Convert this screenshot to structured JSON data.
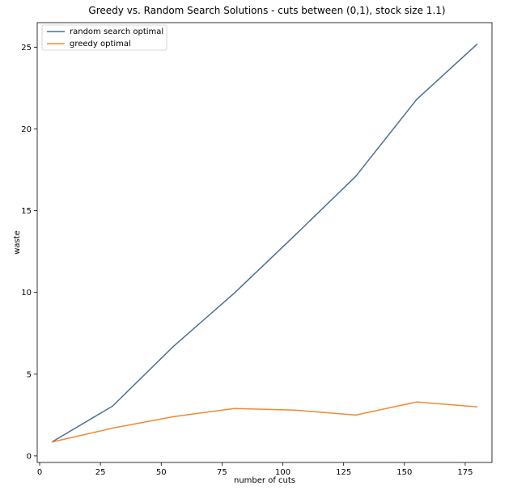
{
  "chart_data": {
    "type": "line",
    "title": "Greedy vs. Random Search Solutions - cuts between (0,1), stock size 1.1)",
    "xlabel": "number of cuts",
    "ylabel": "waste",
    "xlim": [
      -1,
      186
    ],
    "ylim": [
      -0.4,
      26.5
    ],
    "xticks": [
      0,
      25,
      50,
      75,
      100,
      125,
      150,
      175
    ],
    "yticks": [
      0,
      5,
      10,
      15,
      20,
      25
    ],
    "grid": false,
    "legend_position": "top-left",
    "x": [
      5,
      30,
      55,
      80,
      105,
      130,
      155,
      180
    ],
    "series": [
      {
        "name": "random search optimal",
        "color": "#4c6e96",
        "values": [
          0.85,
          3.05,
          6.7,
          9.95,
          13.5,
          17.1,
          21.8,
          25.2
        ]
      },
      {
        "name": "greedy optimal",
        "color": "#ee8a35",
        "values": [
          0.85,
          1.7,
          2.4,
          2.9,
          2.8,
          2.5,
          3.3,
          3.0
        ]
      }
    ]
  }
}
